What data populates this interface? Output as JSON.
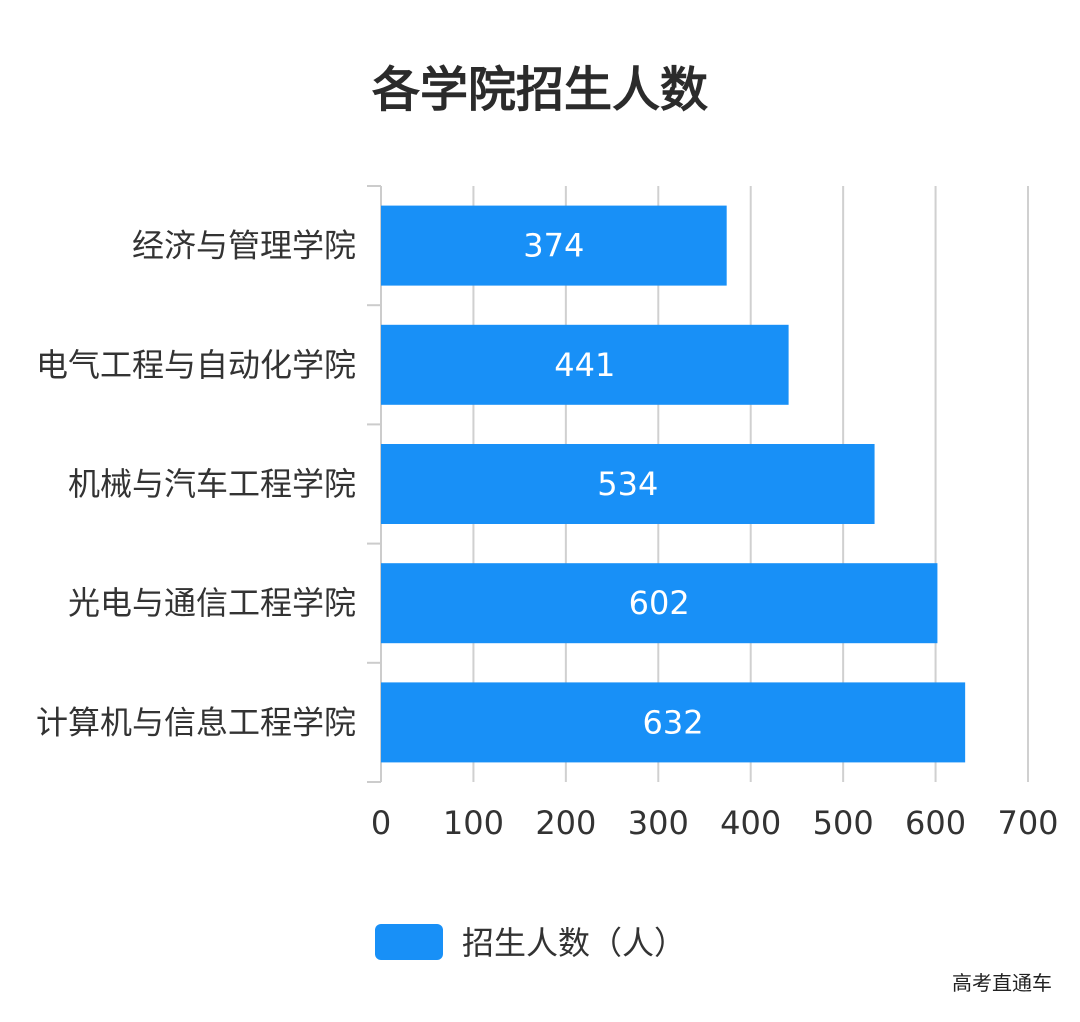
{
  "chart_data": {
    "type": "bar",
    "orientation": "horizontal",
    "title": "各学院招生人数",
    "categories": [
      "经济与管理学院",
      "电气工程与自动化学院",
      "机械与汽车工程学院",
      "光电与通信工程学院",
      "计算机与信息工程学院"
    ],
    "series": [
      {
        "name": "招生人数（人）",
        "values": [
          374,
          441,
          534,
          602,
          632
        ]
      }
    ],
    "xlim": [
      0,
      700
    ],
    "xticks": [
      0,
      100,
      200,
      300,
      400,
      500,
      600,
      700
    ],
    "grid": true,
    "legend_position": "bottom",
    "bar_color": "#1890f7"
  },
  "watermark": "高考直通车"
}
